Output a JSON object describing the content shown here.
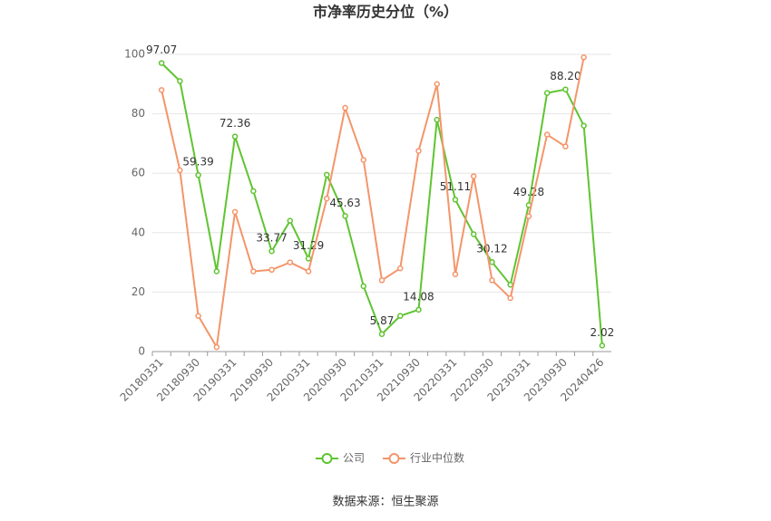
{
  "chart_data": {
    "type": "line",
    "title": "市净率历史分位（%）",
    "source": "数据来源：恒生聚源",
    "categories": [
      "20180331",
      null,
      "20180930",
      null,
      "20190331",
      null,
      "20190930",
      null,
      "20200331",
      null,
      "20200930",
      null,
      "20210331",
      null,
      "20210930",
      null,
      "20220331",
      null,
      "20220930",
      null,
      "20230331",
      null,
      "20230930",
      null,
      "20240426"
    ],
    "series": [
      {
        "name": "公司",
        "color": "#5fc431",
        "values": [
          97.07,
          91,
          59.39,
          27,
          72.36,
          54,
          33.77,
          44,
          31.29,
          59.5,
          45.63,
          22,
          5.87,
          12,
          14.08,
          78,
          51.11,
          39.5,
          30.12,
          22.5,
          49.28,
          87,
          88.2,
          76,
          2.02
        ],
        "value_labels": [
          "97.07",
          null,
          "59.39",
          null,
          "72.36",
          null,
          "33.77",
          null,
          "31.29",
          null,
          "45.63",
          null,
          "5.87",
          null,
          "14.08",
          null,
          "51.11",
          null,
          "30.12",
          null,
          "49.28",
          null,
          "88.20",
          null,
          "2.02"
        ]
      },
      {
        "name": "行业中位数",
        "color": "#f4956a",
        "values": [
          88,
          61,
          12,
          1.5,
          47,
          27,
          27.5,
          30,
          27,
          51.5,
          82,
          64.5,
          24,
          28,
          67.5,
          90,
          26,
          59,
          24,
          18,
          45.5,
          73,
          69,
          99,
          null
        ]
      }
    ],
    "ylim": [
      0,
      100
    ],
    "yticks": [
      0,
      20,
      40,
      60,
      80,
      100
    ],
    "grid": true,
    "legend": "bottom"
  }
}
